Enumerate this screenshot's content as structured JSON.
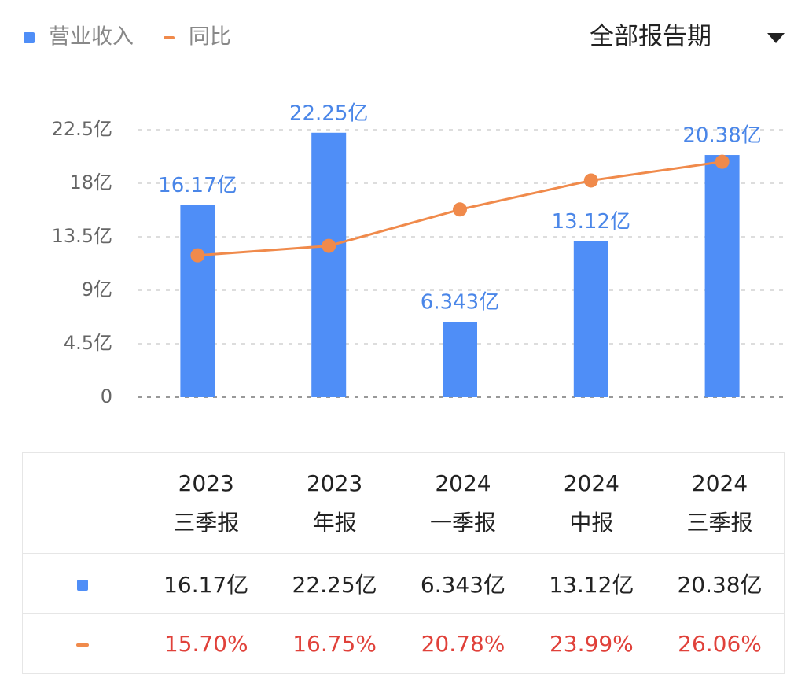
{
  "controls": {
    "period": "全部报告期"
  },
  "chart_data": {
    "type": "bar",
    "categories": [
      "2023\n三季报",
      "2023\n年报",
      "2024\n一季报",
      "2024\n中报",
      "2024\n三季报"
    ],
    "series": [
      {
        "name": "营业收入",
        "color": "#4f8ef7",
        "type": "bar",
        "values": [
          16.17,
          22.25,
          6.343,
          13.12,
          20.38
        ],
        "value_labels": [
          "16.17亿",
          "22.25亿",
          "6.343亿",
          "13.12亿",
          "20.38亿"
        ]
      },
      {
        "name": "同比",
        "color": "#f08a4b",
        "type": "line",
        "axis": "y2",
        "values": [
          15.7,
          16.75,
          20.78,
          23.99,
          26.06
        ],
        "value_labels": [
          "15.70%",
          "16.75%",
          "20.78%",
          "23.99%",
          "26.06%"
        ]
      }
    ],
    "ylim": [
      0,
      22.5
    ],
    "yticks": [
      0,
      {
        "value": 4.5,
        "label": "4.5亿"
      },
      {
        "value": 9,
        "label": "9亿"
      },
      {
        "value": 13.5,
        "label": "13.5亿"
      },
      {
        "value": 18,
        "label": "18亿"
      },
      {
        "value": 22.5,
        "label": "22.5亿"
      }
    ],
    "y2lim": [
      0,
      29.6
    ],
    "grid": true
  }
}
